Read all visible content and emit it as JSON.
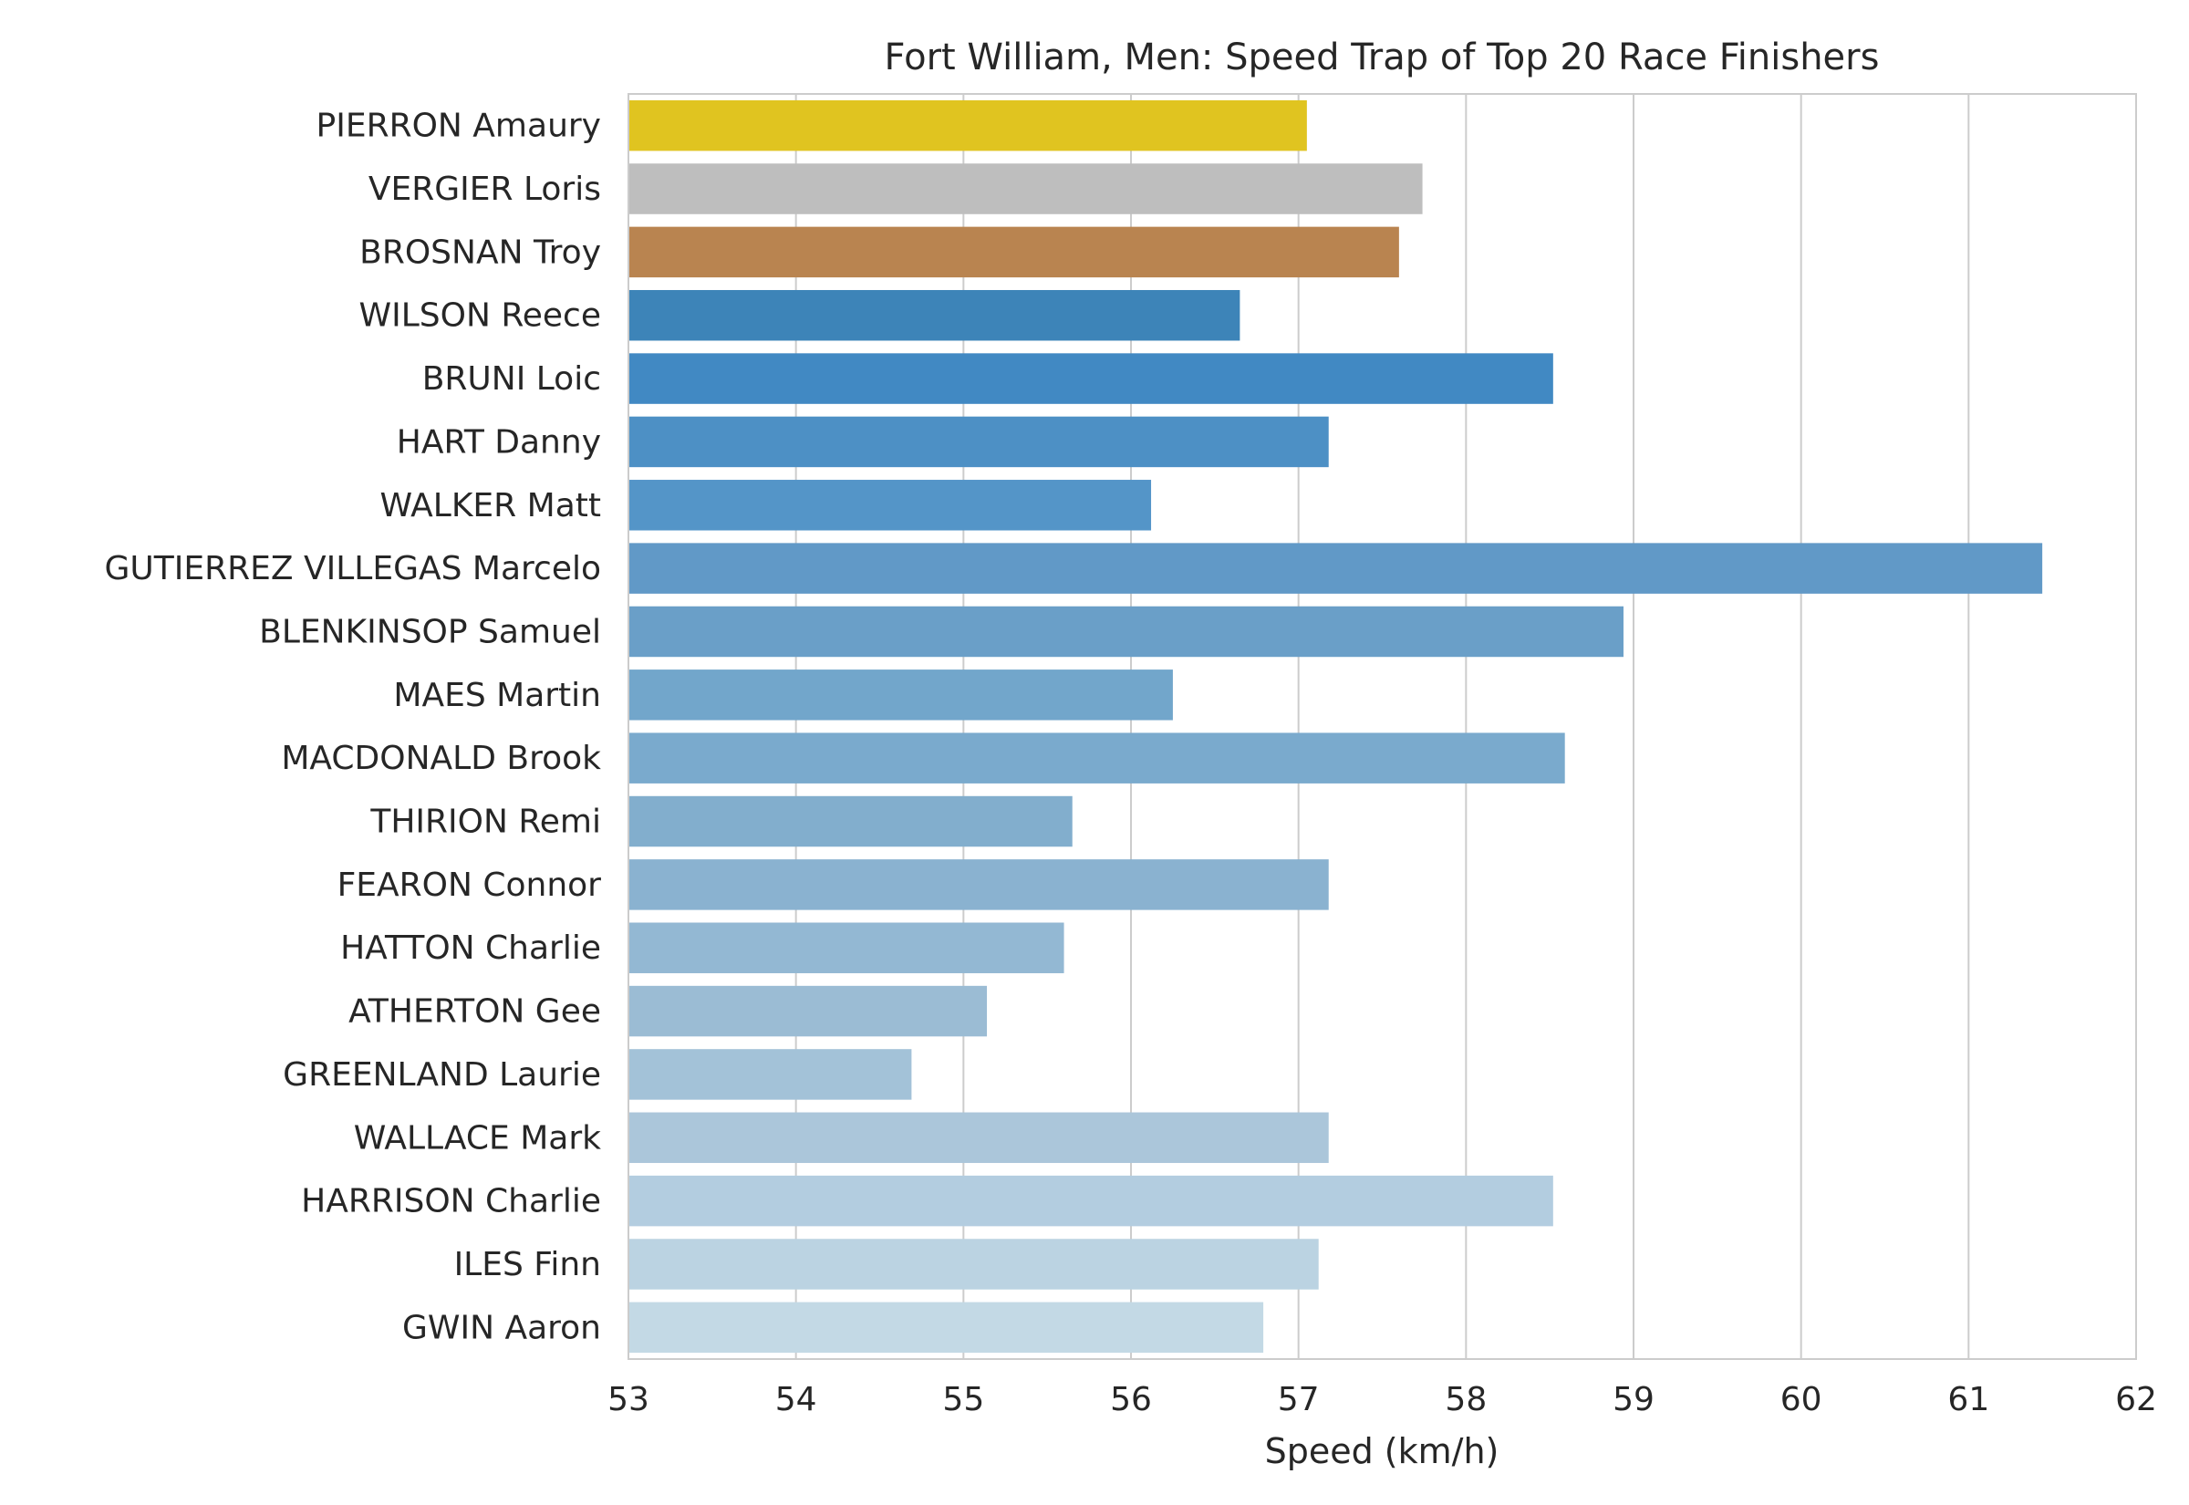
{
  "chart_data": {
    "type": "bar",
    "orientation": "horizontal",
    "title": "Fort William, Men: Speed Trap of Top 20 Race Finishers",
    "xlabel": "Speed (km/h)",
    "ylabel": "",
    "xlim": [
      53,
      62
    ],
    "xticks": [
      "53",
      "54",
      "55",
      "56",
      "57",
      "58",
      "59",
      "60",
      "61",
      "62"
    ],
    "grid": "vertical",
    "categories": [
      "PIERRON Amaury",
      "VERGIER Loris",
      "BROSNAN Troy",
      "WILSON Reece",
      "BRUNI Loic",
      "HART Danny",
      "WALKER Matt",
      "GUTIERREZ VILLEGAS Marcelo",
      "BLENKINSOP Samuel",
      "MAES Martin",
      "MACDONALD Brook",
      "THIRION Remi",
      "FEARON Connor",
      "HATTON Charlie",
      "ATHERTON Gee",
      "GREENLAND Laurie",
      "WALLACE Mark",
      "HARRISON Charlie",
      "ILES Finn",
      "GWIN Aaron"
    ],
    "values": [
      57.05,
      57.74,
      57.6,
      56.65,
      58.52,
      57.18,
      56.12,
      61.44,
      58.94,
      56.25,
      58.59,
      55.65,
      57.18,
      55.6,
      55.14,
      54.69,
      57.18,
      58.52,
      57.12,
      56.79
    ],
    "colors": [
      "#e0c420",
      "#bebebe",
      "#b98450",
      "#3d84b8",
      "#4189c3",
      "#4d90c5",
      "#5495c8",
      "#6199c7",
      "#6a9fc8",
      "#72a6cb",
      "#7aaacd",
      "#82aecd",
      "#8ab2d0",
      "#93b8d3",
      "#9bbcd4",
      "#a3c2d8",
      "#abc6da",
      "#b3cde0",
      "#bbd3e2",
      "#c3d9e5"
    ]
  }
}
